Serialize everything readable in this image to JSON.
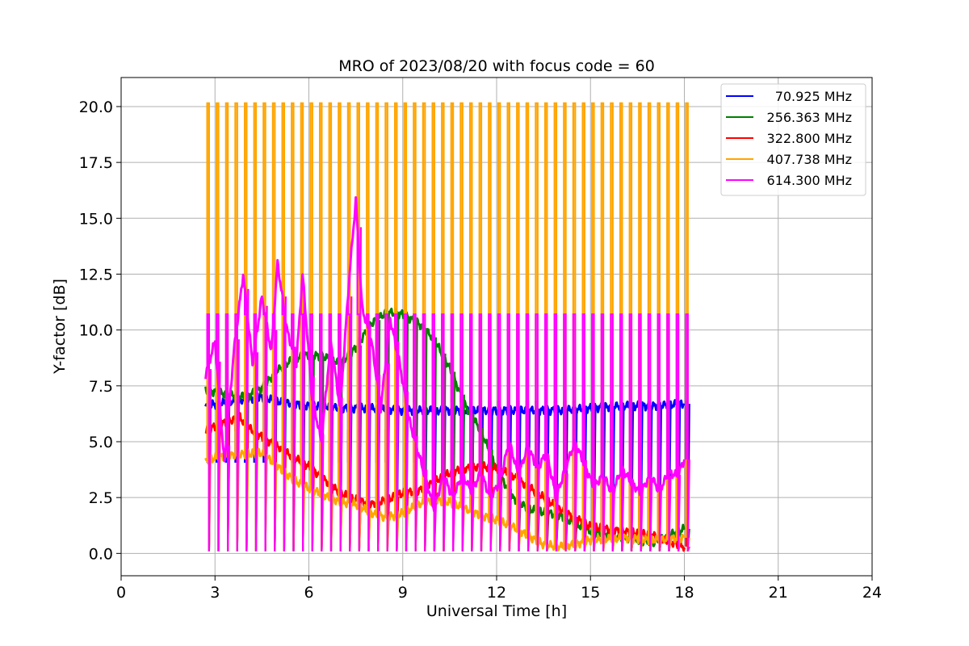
{
  "chart_data": {
    "type": "line",
    "title": "MRO of 2023/08/20 with focus code = 60",
    "xlabel": "Universal Time [h]",
    "ylabel": "Y-factor [dB]",
    "xlim": [
      0,
      24
    ],
    "ylim": [
      -1.0,
      21.3
    ],
    "xticks": [
      0,
      3,
      6,
      9,
      12,
      15,
      18,
      21,
      24
    ],
    "xtick_labels": [
      "0",
      "3",
      "6",
      "9",
      "12",
      "15",
      "18",
      "21",
      "24"
    ],
    "yticks": [
      0.0,
      2.5,
      5.0,
      7.5,
      10.0,
      12.5,
      15.0,
      17.5,
      20.0
    ],
    "ytick_labels": [
      "0.0",
      "2.5",
      "5.0",
      "7.5",
      "10.0",
      "12.5",
      "15.0",
      "17.5",
      "20.0"
    ],
    "grid": true,
    "legend_position": "top-right",
    "calibration_spikes": {
      "period_h": 0.3,
      "start_h": 2.75,
      "end_h": 18.05,
      "spike_width_h": 0.06,
      "low_level_dB": 0.1
    },
    "series": [
      {
        "name": "70.925 MHz",
        "color": "#0000ff",
        "spike_top_dB": 4.1,
        "x": [
          2.7,
          3.5,
          4.5,
          5.0,
          6.0,
          6.5,
          7.0,
          8.0,
          9.0,
          10.0,
          11.0,
          12.0,
          13.0,
          14.0,
          15.0,
          16.0,
          17.0,
          18.0
        ],
        "y": [
          6.6,
          6.8,
          7.0,
          6.8,
          6.6,
          6.6,
          6.5,
          6.5,
          6.4,
          6.4,
          6.4,
          6.4,
          6.4,
          6.4,
          6.5,
          6.6,
          6.6,
          6.7
        ]
      },
      {
        "name": "256.363 MHz",
        "color": "#008000",
        "spike_top_dB": 6.8,
        "x": [
          2.7,
          3.5,
          4.0,
          4.5,
          5.0,
          5.5,
          6.0,
          6.5,
          7.0,
          7.5,
          8.0,
          8.5,
          9.0,
          9.5,
          10.0,
          10.5,
          11.0,
          11.5,
          12.0,
          12.5,
          13.0,
          14.0,
          15.0,
          16.0,
          17.0,
          18.0
        ],
        "y": [
          7.3,
          7.1,
          7.0,
          7.4,
          8.2,
          8.7,
          8.9,
          8.8,
          8.5,
          9.2,
          10.3,
          10.8,
          10.7,
          10.3,
          9.6,
          8.3,
          6.6,
          5.5,
          3.8,
          2.5,
          2.0,
          1.7,
          1.0,
          0.7,
          0.5,
          1.1
        ]
      },
      {
        "name": "322.800 MHz",
        "color": "#ff0000",
        "spike_top_dB": 5.5,
        "x": [
          2.7,
          3.2,
          3.8,
          4.0,
          4.5,
          5.0,
          5.5,
          6.0,
          6.5,
          7.0,
          7.5,
          8.0,
          8.5,
          9.0,
          9.5,
          10.0,
          10.5,
          11.0,
          11.5,
          12.0,
          12.5,
          13.0,
          13.5,
          14.0,
          14.5,
          15.0,
          16.0,
          17.0,
          18.0
        ],
        "y": [
          5.5,
          5.8,
          6.1,
          5.7,
          5.2,
          4.8,
          4.3,
          3.9,
          3.3,
          2.7,
          2.4,
          2.2,
          2.4,
          2.7,
          2.8,
          3.2,
          3.6,
          3.8,
          3.9,
          3.8,
          3.5,
          3.0,
          2.5,
          2.0,
          1.6,
          1.2,
          1.0,
          0.8,
          0.3
        ]
      },
      {
        "name": "407.738 MHz",
        "color": "#ffa500",
        "spike_top_dB": 20.15,
        "x": [
          2.7,
          3.5,
          4.5,
          5.0,
          5.5,
          6.0,
          6.5,
          7.0,
          7.5,
          8.0,
          8.5,
          9.0,
          9.5,
          10.0,
          10.5,
          11.0,
          11.5,
          12.0,
          12.5,
          13.0,
          13.5,
          14.0,
          14.5,
          15.0,
          16.0,
          17.0,
          18.0
        ],
        "y": [
          4.2,
          4.4,
          4.5,
          3.9,
          3.3,
          2.9,
          2.6,
          2.3,
          2.2,
          1.8,
          1.6,
          1.8,
          2.2,
          2.4,
          2.3,
          2.0,
          1.7,
          1.5,
          1.2,
          0.8,
          0.4,
          0.3,
          0.4,
          0.6,
          0.7,
          0.6,
          0.7
        ]
      },
      {
        "name": "614.300 MHz",
        "color": "#ff00ff",
        "spike_top_dB": 10.7,
        "x": [
          2.7,
          3.0,
          3.3,
          3.6,
          3.9,
          4.2,
          4.5,
          4.8,
          5.0,
          5.3,
          5.6,
          5.8,
          6.1,
          6.4,
          6.7,
          7.0,
          7.3,
          7.5,
          7.7,
          8.0,
          8.3,
          8.6,
          8.9,
          9.2,
          9.5,
          9.8,
          10.0,
          10.3,
          10.6,
          10.9,
          11.2,
          11.5,
          11.8,
          12.1,
          12.4,
          12.7,
          13.0,
          13.3,
          13.6,
          13.9,
          14.2,
          14.5,
          14.8,
          15.1,
          15.4,
          15.7,
          16.0,
          16.3,
          16.6,
          16.9,
          17.2,
          17.5,
          17.8,
          18.0
        ],
        "y": [
          8.0,
          9.5,
          4.0,
          9.0,
          12.5,
          8.5,
          11.5,
          9.0,
          13.0,
          10.0,
          8.5,
          12.5,
          7.0,
          5.0,
          9.5,
          6.5,
          12.5,
          15.8,
          11.0,
          9.5,
          6.5,
          10.5,
          8.5,
          6.0,
          4.5,
          3.0,
          2.0,
          3.5,
          2.5,
          3.5,
          2.8,
          3.6,
          2.5,
          3.2,
          5.0,
          3.5,
          4.8,
          3.8,
          4.5,
          2.5,
          3.8,
          5.0,
          4.0,
          3.0,
          3.5,
          2.7,
          3.8,
          3.2,
          2.7,
          3.5,
          2.8,
          3.6,
          3.5,
          4.2
        ]
      }
    ]
  }
}
